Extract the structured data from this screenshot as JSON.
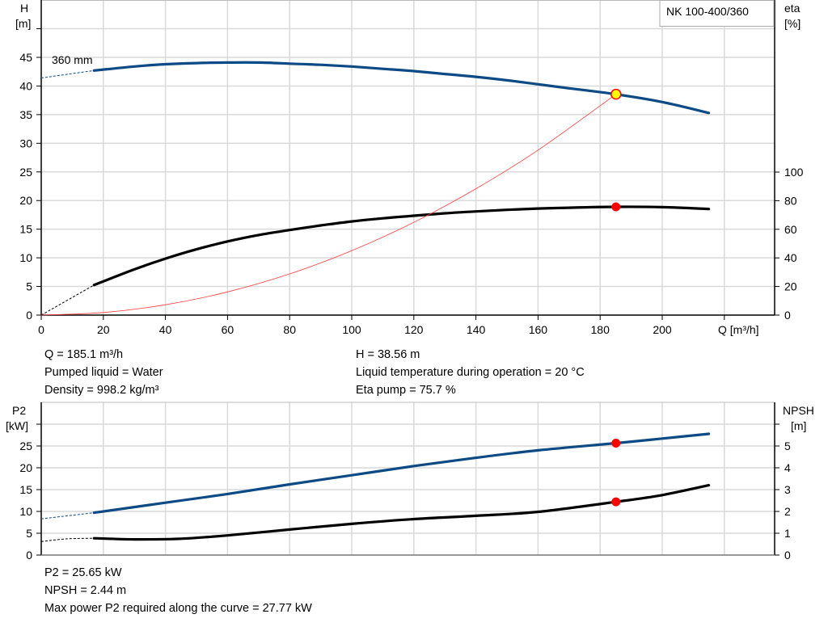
{
  "colors": {
    "head": "#0b4a85",
    "eta": "#000000",
    "system": "#ff3b3b",
    "power": "#0b4a85",
    "npsh": "#000000",
    "duty_point": "#ff0000",
    "duty_point_head_fill": "#ffff00",
    "grid": "#d9d9d9"
  },
  "chart_data": [
    {
      "type": "line",
      "legend": "NK 100-400/360",
      "curve_label": "360 mm",
      "xlabel": "Q [m³/h]",
      "ylabel_left": [
        "H",
        "[m]"
      ],
      "ylabel_right": [
        "eta",
        "[%]"
      ],
      "xlim": [
        0,
        235
      ],
      "ylim_left": [
        0,
        55
      ],
      "ylim_right": [
        0,
        220
      ],
      "xticks": [
        "0",
        "20",
        "40",
        "60",
        "80",
        "100",
        "120",
        "140",
        "160",
        "180",
        "200"
      ],
      "yticks_left": [
        "0",
        "5",
        "10",
        "15",
        "20",
        "25",
        "30",
        "35",
        "40",
        "45"
      ],
      "yticks_right": [
        "0",
        "20",
        "40",
        "60",
        "80",
        "100"
      ],
      "grid": true,
      "series": [
        {
          "key": "H",
          "axis": "left",
          "x": [
            17,
            30,
            40,
            50,
            60,
            70,
            80,
            90,
            100,
            110,
            120,
            130,
            140,
            150,
            160,
            170,
            185.1,
            200,
            215
          ],
          "y": [
            42.7,
            43.4,
            43.8,
            44.0,
            44.1,
            44.1,
            43.9,
            43.7,
            43.4,
            43.0,
            42.6,
            42.1,
            41.6,
            41.0,
            40.3,
            39.6,
            38.56,
            37.2,
            35.3
          ],
          "dashed_x": [
            0,
            17
          ],
          "dashed_y": [
            41.4,
            42.7
          ]
        },
        {
          "key": "eta",
          "axis": "right",
          "x": [
            17,
            30,
            40,
            50,
            60,
            70,
            80,
            90,
            100,
            110,
            120,
            130,
            140,
            150,
            160,
            170,
            185.1,
            200,
            215
          ],
          "y": [
            21,
            32,
            39.5,
            46,
            51.5,
            56,
            59.5,
            62.7,
            65.5,
            67.7,
            69.5,
            71.2,
            72.5,
            73.6,
            74.5,
            75.1,
            75.7,
            75.5,
            74.2
          ],
          "dashed_x": [
            0,
            17
          ],
          "dashed_y": [
            0,
            21
          ]
        },
        {
          "key": "system",
          "axis": "left",
          "x": [
            0,
            20,
            40,
            60,
            80,
            100,
            120,
            140,
            160,
            185.1
          ],
          "y": [
            0,
            0.45,
            1.8,
            4.05,
            7.2,
            11.25,
            16.2,
            22.06,
            28.8,
            38.56
          ]
        }
      ],
      "duty_point": {
        "Q": 185.1,
        "H": 38.56,
        "eta": 75.7
      }
    },
    {
      "type": "line",
      "xlim": [
        0,
        235
      ],
      "ylabel_left": [
        "P2",
        "[kW]"
      ],
      "ylabel_right": [
        "NPSH",
        "[m]"
      ],
      "ylim_left": [
        0,
        35
      ],
      "ylim_right": [
        0,
        7
      ],
      "yticks_left": [
        "0",
        "5",
        "10",
        "15",
        "20",
        "25"
      ],
      "yticks_right": [
        "0",
        "1",
        "2",
        "3",
        "4",
        "5"
      ],
      "grid": true,
      "series": [
        {
          "key": "P2",
          "axis": "left",
          "x": [
            17,
            40,
            60,
            80,
            100,
            120,
            140,
            160,
            185.1,
            200,
            215
          ],
          "y": [
            9.7,
            12.0,
            14.0,
            16.2,
            18.3,
            20.4,
            22.3,
            24.0,
            25.65,
            26.7,
            27.77
          ],
          "dashed_x": [
            0,
            17
          ],
          "dashed_y": [
            8.3,
            9.7
          ]
        },
        {
          "key": "NPSH",
          "axis": "right",
          "x": [
            17,
            30,
            45,
            60,
            80,
            100,
            120,
            140,
            160,
            185.1,
            200,
            215
          ],
          "y": [
            0.77,
            0.72,
            0.75,
            0.9,
            1.17,
            1.43,
            1.65,
            1.8,
            1.98,
            2.44,
            2.75,
            3.2
          ],
          "dashed_x": [
            0,
            8,
            17
          ],
          "dashed_y": [
            0.62,
            0.74,
            0.77
          ]
        }
      ],
      "duty_point": {
        "Q": 185.1,
        "P2": 25.65,
        "NPSH": 2.44
      }
    }
  ],
  "info_top": {
    "q": "Q = 185.1 m³/h",
    "liquid": "Pumped liquid = Water",
    "density": "Density = 998.2 kg/m³",
    "h": "H = 38.56 m",
    "temp": "Liquid temperature during operation = 20 °C",
    "eta": "Eta pump = 75.7 %"
  },
  "info_bottom": {
    "p2": "P2 = 25.65 kW",
    "npsh": "NPSH = 2.44 m",
    "max_power": "Max power P2 required along the curve = 27.77 kW"
  }
}
